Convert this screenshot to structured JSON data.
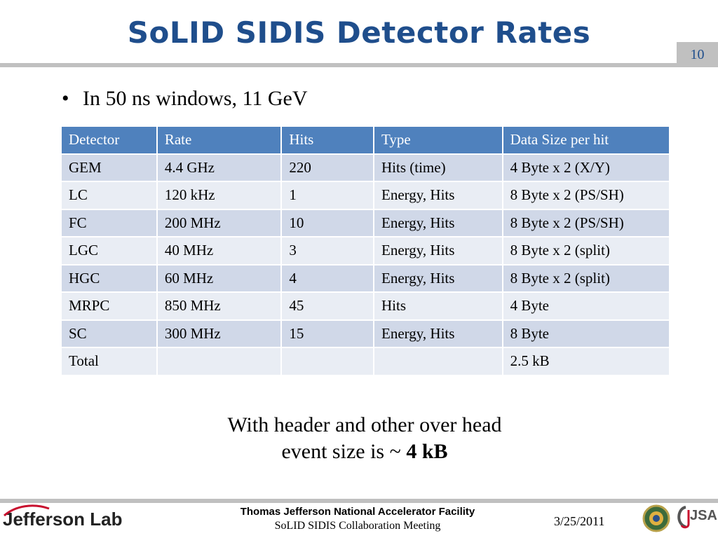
{
  "slide": {
    "title": "SoLID SIDIS Detector Rates",
    "number": "10"
  },
  "bullet": "In 50 ns windows, 11 GeV",
  "table": {
    "headers": [
      "Detector",
      "Rate",
      "Hits",
      "Type",
      "Data Size per hit"
    ],
    "rows": [
      [
        "GEM",
        "4.4 GHz",
        "220",
        "Hits (time)",
        "4 Byte x 2 (X/Y)"
      ],
      [
        "LC",
        "120 kHz",
        "1",
        "Energy, Hits",
        "8 Byte x 2 (PS/SH)"
      ],
      [
        "FC",
        "200 MHz",
        "10",
        "Energy, Hits",
        "8 Byte x 2 (PS/SH)"
      ],
      [
        "LGC",
        "40 MHz",
        "3",
        "Energy, Hits",
        "8 Byte x 2 (split)"
      ],
      [
        "HGC",
        "60 MHz",
        "4",
        "Energy, Hits",
        "8 Byte x 2 (split)"
      ],
      [
        "MRPC",
        "850 MHz",
        "45",
        "Hits",
        "4 Byte"
      ],
      [
        "SC",
        "300 MHz",
        "15",
        "Energy, Hits",
        "8 Byte"
      ],
      [
        "Total",
        "",
        "",
        "",
        "2.5 kB"
      ]
    ]
  },
  "note": {
    "line1": "With header and other over head",
    "line2_prefix": "event size is ~ ",
    "line2_bold": "4 kB"
  },
  "footer": {
    "logo": "Jefferson Lab",
    "facility": "Thomas Jefferson National Accelerator Facility",
    "meeting": "SoLID SIDIS Collaboration Meeting",
    "date": "3/25/2011",
    "jsa_logo": "JSA"
  },
  "colors": {
    "title": "#1f4e8c",
    "header_bg": "#4f81bd",
    "row_dark": "#d0d8e8",
    "row_light": "#e9edf4",
    "rule": "#c0c0c0"
  }
}
